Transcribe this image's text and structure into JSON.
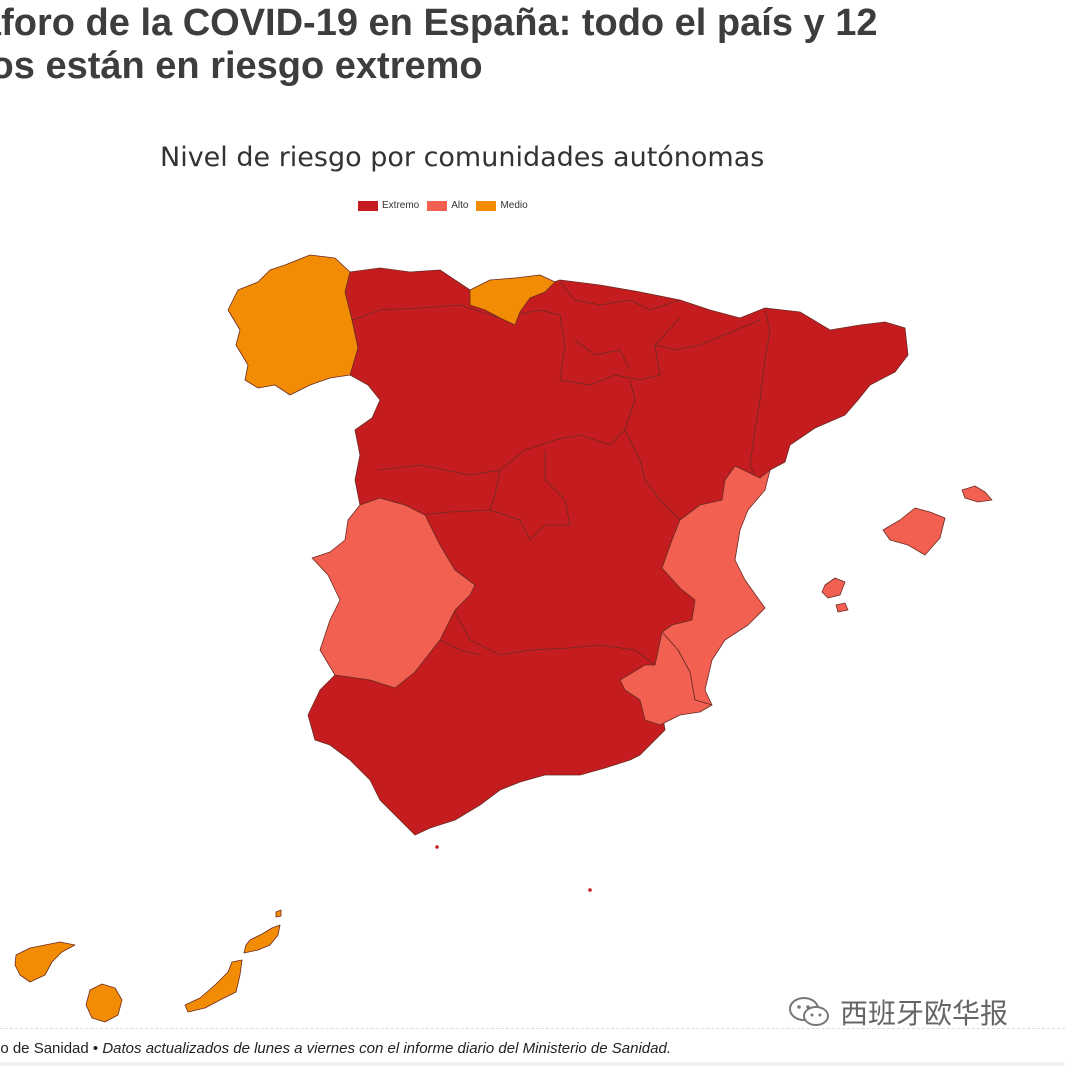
{
  "headline": {
    "line1": "áforo de la COVID-19 en España: todo el país y 12",
    "line2": "ios están en riesgo extremo"
  },
  "map": {
    "title": "Nivel de riesgo por comunidades autónomas",
    "legend": [
      {
        "label": "Extremo",
        "color": "#c51d1f"
      },
      {
        "label": "Alto",
        "color": "#f26052"
      },
      {
        "label": "Medio",
        "color": "#f28c05"
      }
    ]
  },
  "watermark": {
    "text": "西班牙欧华报",
    "icon": "wechat-icon"
  },
  "footer": {
    "source": "rio de Sanidad",
    "separator": " • ",
    "note": "Datos actualizados de lunes a viernes con el informe diario del Ministerio de Sanidad."
  }
}
